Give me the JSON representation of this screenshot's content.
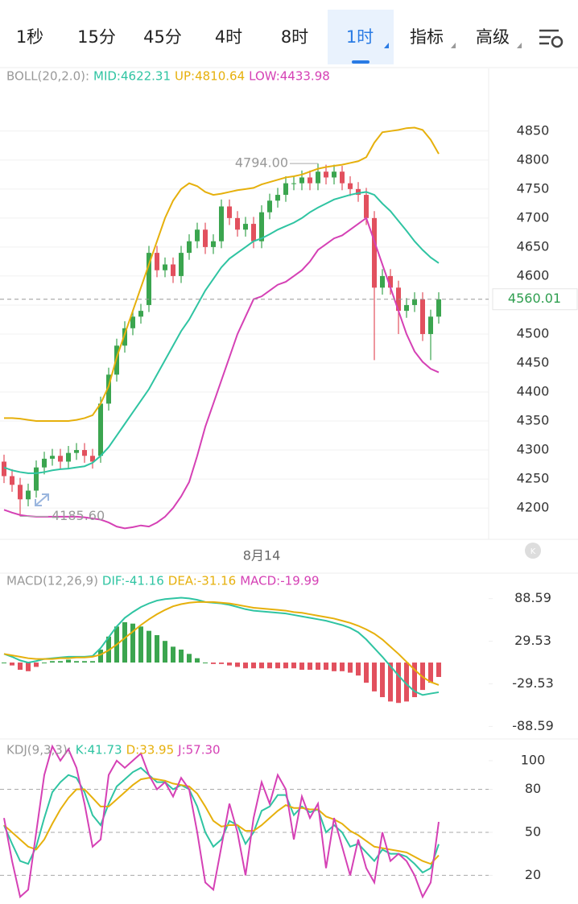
{
  "tabs": {
    "items": [
      "1秒",
      "15分",
      "45分",
      "4时",
      "8时",
      "1时",
      "指标",
      "高级"
    ],
    "active": 5
  },
  "chart_data": [
    {
      "type": "candlestick",
      "indicator": "BOLL(20,2.0):",
      "categories": [
        null,
        null,
        null,
        null,
        null,
        null,
        null,
        null,
        null,
        null,
        null,
        null,
        null,
        null,
        null,
        null,
        null,
        null,
        null,
        null,
        null,
        null,
        null,
        null,
        null,
        null,
        null,
        null,
        null,
        null,
        null,
        null,
        "8月14",
        null,
        null,
        null,
        null,
        null,
        null,
        null,
        null,
        null,
        null,
        null,
        null,
        null,
        null,
        null,
        null,
        null,
        null,
        null,
        null,
        null,
        null
      ],
      "open": [
        4280,
        4255,
        4240,
        4215,
        4230,
        4270,
        4285,
        4290,
        4280,
        4295,
        4300,
        4290,
        4290,
        4380,
        4430,
        4480,
        4510,
        4530,
        4550,
        4640,
        4610,
        4620,
        4600,
        4640,
        4660,
        4680,
        4650,
        4660,
        4720,
        4700,
        4680,
        4690,
        4660,
        4710,
        4730,
        4740,
        4760,
        4760,
        4770,
        4760,
        4780,
        4770,
        4780,
        4760,
        4750,
        4740,
        4700,
        4580,
        4600,
        4580,
        4540,
        4550,
        4560,
        4500,
        4530
      ],
      "high": [
        4292,
        4267,
        4252,
        4242,
        4282,
        4297,
        4302,
        4302,
        4307,
        4312,
        4312,
        4302,
        4392,
        4442,
        4492,
        4522,
        4542,
        4552,
        4652,
        4652,
        4632,
        4632,
        4652,
        4672,
        4692,
        4692,
        4672,
        4732,
        4732,
        4712,
        4702,
        4702,
        4722,
        4742,
        4752,
        4772,
        4772,
        4782,
        4782,
        4794,
        4792,
        4792,
        4790,
        4772,
        4762,
        4752,
        4712,
        4612,
        4612,
        4592,
        4562,
        4572,
        4572,
        4542,
        4572
      ],
      "low": [
        4243,
        4228,
        4185.6,
        4203,
        4218,
        4258,
        4273,
        4268,
        4268,
        4283,
        4278,
        4268,
        4278,
        4368,
        4418,
        4468,
        4498,
        4518,
        4538,
        4598,
        4598,
        4588,
        4588,
        4628,
        4648,
        4638,
        4638,
        4648,
        4688,
        4668,
        4668,
        4648,
        4648,
        4698,
        4718,
        4728,
        4748,
        4748,
        4748,
        4748,
        4758,
        4758,
        4748,
        4738,
        4728,
        4688,
        4455,
        4568,
        4568,
        4500,
        4528,
        4538,
        4488,
        4455,
        4518
      ],
      "close": [
        4255,
        4240,
        4215,
        4230,
        4270,
        4285,
        4290,
        4280,
        4295,
        4300,
        4290,
        4280,
        4380,
        4430,
        4480,
        4510,
        4530,
        4540,
        4640,
        4610,
        4620,
        4600,
        4640,
        4660,
        4680,
        4650,
        4660,
        4720,
        4700,
        4680,
        4690,
        4660,
        4710,
        4730,
        4740,
        4760,
        4760,
        4770,
        4760,
        4780,
        4770,
        4780,
        4760,
        4750,
        4740,
        4700,
        4580,
        4600,
        4580,
        4540,
        4550,
        4560,
        4500,
        4530,
        4560.01
      ],
      "up_color": "#3ba54f",
      "down_color": "#e2505e",
      "series": [
        {
          "name": "MID:4622.31",
          "color": "#2fc4a2",
          "values": [
            4270,
            4265,
            4262,
            4260,
            4260,
            4262,
            4265,
            4267,
            4268,
            4270,
            4272,
            4278,
            4290,
            4305,
            4325,
            4345,
            4365,
            4385,
            4405,
            4430,
            4455,
            4480,
            4505,
            4525,
            4550,
            4575,
            4595,
            4615,
            4630,
            4640,
            4650,
            4660,
            4665,
            4672,
            4680,
            4686,
            4692,
            4700,
            4710,
            4718,
            4725,
            4732,
            4736,
            4740,
            4743,
            4745,
            4740,
            4725,
            4712,
            4695,
            4678,
            4660,
            4645,
            4632,
            4622.31
          ]
        },
        {
          "name": "UP:4810.64",
          "color": "#e6b00c",
          "values": [
            4355,
            4355,
            4354,
            4352,
            4350,
            4350,
            4350,
            4350,
            4350,
            4352,
            4355,
            4360,
            4380,
            4410,
            4460,
            4500,
            4540,
            4580,
            4620,
            4660,
            4700,
            4730,
            4750,
            4760,
            4755,
            4745,
            4740,
            4742,
            4745,
            4748,
            4750,
            4752,
            4758,
            4762,
            4766,
            4770,
            4772,
            4775,
            4780,
            4785,
            4788,
            4790,
            4792,
            4795,
            4798,
            4805,
            4830,
            4848,
            4850,
            4852,
            4855,
            4856,
            4852,
            4835,
            4810.64
          ]
        },
        {
          "name": "LOW:4433.98",
          "color": "#d541b5",
          "values": [
            4197,
            4192,
            4188,
            4186,
            4185,
            4185,
            4185,
            4185,
            4185,
            4185,
            4184,
            4182,
            4180,
            4175,
            4168,
            4165,
            4167,
            4170,
            4168,
            4175,
            4185,
            4200,
            4220,
            4245,
            4290,
            4340,
            4380,
            4420,
            4460,
            4500,
            4530,
            4560,
            4565,
            4575,
            4585,
            4590,
            4600,
            4610,
            4625,
            4645,
            4655,
            4665,
            4670,
            4680,
            4690,
            4700,
            4660,
            4620,
            4580,
            4540,
            4500,
            4470,
            4452,
            4440,
            4433.98
          ]
        }
      ],
      "ylim": [
        4146,
        4958
      ],
      "yticks": [
        4200,
        4250,
        4300,
        4350,
        4400,
        4450,
        4500,
        4550,
        4600,
        4650,
        4700,
        4750,
        4800,
        4850
      ],
      "grid": true,
      "annotations": [
        {
          "text": "4794.00",
          "value": 4794,
          "index": 39,
          "side": "left"
        },
        {
          "text": "4185.60",
          "value": 4185.6,
          "index": 2,
          "side": "right"
        }
      ],
      "last_price": 4560.01
    },
    {
      "type": "macd",
      "indicator": "MACD(12,26,9)",
      "series": [
        {
          "name": "DIF:-41.16",
          "color": "#2fc4a2",
          "values": [
            12,
            8,
            3,
            0,
            2,
            5,
            6,
            7,
            8,
            8,
            8,
            9,
            20,
            35,
            50,
            62,
            70,
            77,
            82,
            86,
            88,
            89,
            90,
            89,
            87,
            84,
            83,
            82,
            80,
            77,
            74,
            72,
            71,
            70,
            69,
            68,
            66,
            64,
            62,
            60,
            58,
            55,
            52,
            48,
            42,
            32,
            20,
            8,
            -5,
            -18,
            -30,
            -40,
            -45,
            -43,
            -41.16
          ]
        },
        {
          "name": "DEA:-31.16",
          "color": "#e6b00c",
          "values": [
            12,
            10,
            8,
            6,
            5,
            5,
            5,
            6,
            6,
            7,
            7,
            8,
            11,
            17,
            25,
            34,
            43,
            52,
            60,
            67,
            73,
            78,
            81,
            83,
            84,
            84,
            84,
            83,
            82,
            80,
            78,
            76,
            75,
            74,
            73,
            72,
            70,
            69,
            67,
            65,
            63,
            61,
            58,
            55,
            51,
            46,
            40,
            32,
            22,
            12,
            1,
            -10,
            -20,
            -27,
            -31.16
          ]
        }
      ],
      "histogram": {
        "name": "MACD:-19.99",
        "color": "#d541b5",
        "up_color": "#3ba54f",
        "down_color": "#e2505e",
        "values": [
          0,
          -4,
          -10,
          -12,
          -6,
          0,
          2,
          2,
          4,
          2,
          2,
          2,
          18,
          36,
          50,
          56,
          54,
          50,
          44,
          38,
          30,
          22,
          18,
          12,
          6,
          0,
          -2,
          -2,
          -4,
          -6,
          -8,
          -8,
          -8,
          -8,
          -8,
          -8,
          -8,
          -10,
          -10,
          -10,
          -10,
          -12,
          -12,
          -14,
          -18,
          -28,
          -40,
          -48,
          -54,
          -56,
          -54,
          -48,
          -38,
          -28,
          -19.99
        ]
      },
      "ylim": [
        -106,
        124
      ],
      "yticks": [
        -88.59,
        -29.53,
        29.53,
        88.59
      ],
      "grid": false
    },
    {
      "type": "kdj",
      "indicator": "KDJ(9,3,3):",
      "series": [
        {
          "name": "K:41.73",
          "color": "#2fc4a2",
          "values": [
            55,
            42,
            30,
            28,
            40,
            60,
            78,
            85,
            90,
            88,
            78,
            62,
            55,
            70,
            82,
            87,
            92,
            95,
            90,
            85,
            85,
            80,
            83,
            80,
            68,
            50,
            40,
            45,
            58,
            55,
            42,
            50,
            65,
            68,
            76,
            76,
            62,
            68,
            64,
            66,
            50,
            55,
            50,
            40,
            42,
            36,
            30,
            38,
            35,
            35,
            33,
            28,
            22,
            25,
            41.73
          ]
        },
        {
          "name": "D:33.95",
          "color": "#e6b00c",
          "values": [
            55,
            50,
            45,
            40,
            38,
            45,
            56,
            66,
            74,
            80,
            80,
            74,
            68,
            68,
            73,
            78,
            83,
            87,
            88,
            87,
            86,
            84,
            83,
            82,
            77,
            68,
            58,
            54,
            55,
            55,
            51,
            51,
            55,
            60,
            65,
            69,
            67,
            67,
            66,
            66,
            61,
            59,
            56,
            51,
            48,
            44,
            40,
            39,
            38,
            37,
            36,
            33,
            30,
            28,
            33.95
          ]
        },
        {
          "name": "J:57.30",
          "color": "#d541b5",
          "values": [
            60,
            30,
            5,
            10,
            50,
            90,
            110,
            100,
            108,
            95,
            70,
            40,
            45,
            90,
            100,
            95,
            100,
            105,
            90,
            80,
            85,
            75,
            88,
            80,
            50,
            15,
            10,
            40,
            70,
            50,
            20,
            60,
            85,
            70,
            90,
            80,
            45,
            75,
            60,
            70,
            25,
            60,
            40,
            20,
            45,
            25,
            15,
            50,
            30,
            35,
            30,
            20,
            5,
            15,
            57.3
          ]
        }
      ],
      "ylim": [
        0,
        114
      ],
      "yticks": [
        20,
        50,
        80,
        100
      ],
      "reference_lines": [
        20,
        50,
        80
      ],
      "grid": false
    }
  ]
}
